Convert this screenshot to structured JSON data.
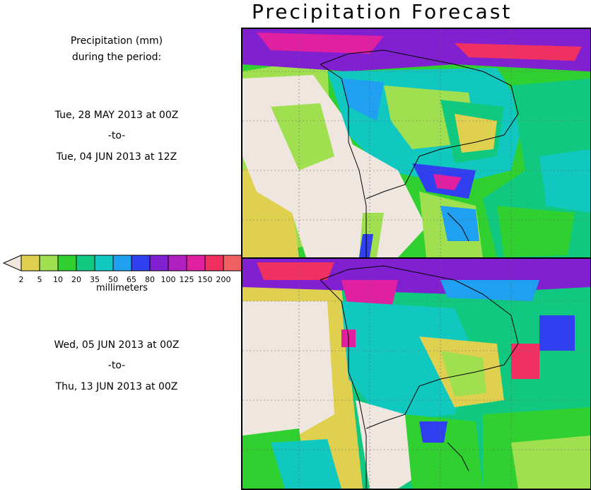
{
  "title": "Precipitation Forecast",
  "header": {
    "line1": "Precipitation (mm)",
    "line2": "during the period:"
  },
  "period1": {
    "start": "Tue, 28 MAY 2013 at 00Z",
    "sep": "-to-",
    "end": "Tue, 04 JUN 2013 at 12Z"
  },
  "period2": {
    "start": "Wed, 05 JUN 2013 at 00Z",
    "sep": "-to-",
    "end": "Thu, 13 JUN 2013 at 00Z"
  },
  "legend": {
    "label": "millimeters",
    "ticks": [
      "2",
      "5",
      "10",
      "20",
      "35",
      "50",
      "65",
      "80",
      "100",
      "125",
      "150",
      "200"
    ],
    "colors": [
      "#e0d050",
      "#a0e050",
      "#30d030",
      "#10c880",
      "#10c8c0",
      "#20a0f0",
      "#3040f0",
      "#8020d0",
      "#b020c0",
      "#e020a0",
      "#f03060",
      "#f06060"
    ],
    "below_color": "#f0e6e0",
    "above_color": "#f06060"
  },
  "maps": {
    "map1_name": "forecast-map-period-1",
    "map2_name": "forecast-map-period-2",
    "colors": {
      "dry": "#f0e6e0",
      "yellow": "#e0d050",
      "lightgreen": "#a0e050",
      "green": "#30d030",
      "teal": "#10c880",
      "cyan": "#10c8c0",
      "blue": "#20a0f0",
      "darkblue": "#3040f0",
      "purple": "#8020d0",
      "magenta": "#e020a0",
      "red": "#f03060"
    }
  }
}
